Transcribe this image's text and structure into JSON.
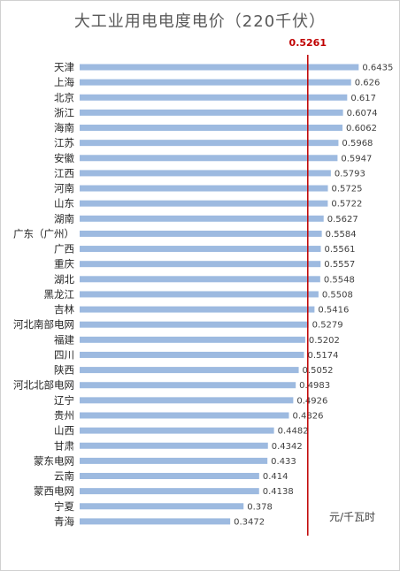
{
  "chart_data": {
    "type": "bar",
    "orientation": "horizontal",
    "title": "大工业用电电度电价（220千伏）",
    "unit": "元/千瓦时",
    "reference_line": {
      "value": 0.5261,
      "label": "0.5261",
      "color": "#c00000"
    },
    "bar_color": "#9dbae0",
    "xlim": [
      0,
      0.67
    ],
    "grid": false,
    "categories": [
      "天津",
      "上海",
      "北京",
      "浙江",
      "海南",
      "江苏",
      "安徽",
      "江西",
      "河南",
      "山东",
      "湖南",
      "广东（广州）",
      "广西",
      "重庆",
      "湖北",
      "黑龙江",
      "吉林",
      "河北南部电网",
      "福建",
      "四川",
      "陕西",
      "河北北部电网",
      "辽宁",
      "贵州",
      "山西",
      "甘肃",
      "蒙东电网",
      "云南",
      "蒙西电网",
      "宁夏",
      "青海"
    ],
    "values": [
      0.6435,
      0.626,
      0.617,
      0.6074,
      0.6062,
      0.5968,
      0.5947,
      0.5793,
      0.5725,
      0.5722,
      0.5627,
      0.5584,
      0.5561,
      0.5557,
      0.5548,
      0.5508,
      0.5416,
      0.5279,
      0.5202,
      0.5174,
      0.5052,
      0.4983,
      0.4926,
      0.4826,
      0.4482,
      0.4342,
      0.433,
      0.414,
      0.4138,
      0.378,
      0.3472
    ],
    "value_labels": [
      "0.6435",
      "0.626",
      "0.617",
      "0.6074",
      "0.6062",
      "0.5968",
      "0.5947",
      "0.5793",
      "0.5725",
      "0.5722",
      "0.5627",
      "0.5584",
      "0.5561",
      "0.5557",
      "0.5548",
      "0.5508",
      "0.5416",
      "0.5279",
      "0.5202",
      "0.5174",
      "0.5052",
      "0.4983",
      "0.4926",
      "0.4826",
      "0.4482",
      "0.4342",
      "0.433",
      "0.414",
      "0.4138",
      "0.378",
      "0.3472"
    ]
  }
}
